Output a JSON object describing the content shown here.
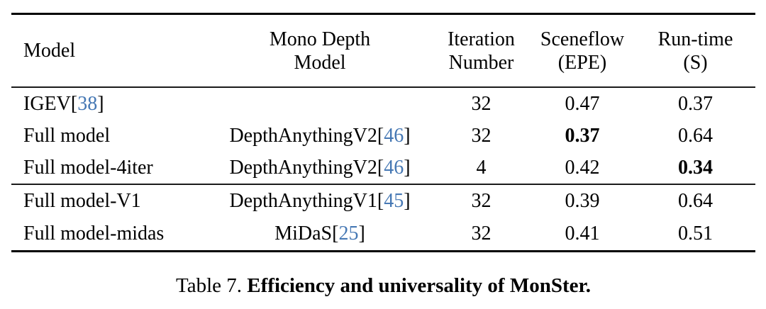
{
  "colors": {
    "text": "#000000",
    "citation_link": "#4678b4",
    "rule": "#000000",
    "background": "#ffffff"
  },
  "brackets": {
    "open": "[",
    "close": "]"
  },
  "table": {
    "header": {
      "col1": "Model",
      "col2_line1": "Mono Depth",
      "col2_line2": "Model",
      "col3_line1": "Iteration",
      "col3_line2": "Number",
      "col4_line1": "Sceneflow",
      "col4_line2": "(EPE)",
      "col5_line1": "Run-time",
      "col5_line2": "(S)"
    },
    "rows": [
      {
        "model": "IGEV",
        "model_cite": "38",
        "mono": "",
        "mono_cite": "",
        "iterations": "32",
        "epe": "0.47",
        "epe_bold": false,
        "runtime": "0.37",
        "runtime_bold": false
      },
      {
        "model": "Full model",
        "model_cite": "",
        "mono": "DepthAnythingV2",
        "mono_cite": "46",
        "iterations": "32",
        "epe": "0.37",
        "epe_bold": true,
        "runtime": "0.64",
        "runtime_bold": false
      },
      {
        "model": "Full model-4iter",
        "model_cite": "",
        "mono": "DepthAnythingV2",
        "mono_cite": "46",
        "iterations": "4",
        "epe": "0.42",
        "epe_bold": false,
        "runtime": "0.34",
        "runtime_bold": true
      },
      {
        "model": "Full model-V1",
        "model_cite": "",
        "mono": "DepthAnythingV1",
        "mono_cite": "45",
        "iterations": "32",
        "epe": "0.39",
        "epe_bold": false,
        "runtime": "0.64",
        "runtime_bold": false
      },
      {
        "model": "Full model-midas",
        "model_cite": "",
        "mono": "MiDaS",
        "mono_cite": "25",
        "iterations": "32",
        "epe": "0.41",
        "epe_bold": false,
        "runtime": "0.51",
        "runtime_bold": false
      }
    ]
  },
  "caption": {
    "label": "Table 7.",
    "title": "Efficiency and universality of MonSter."
  }
}
